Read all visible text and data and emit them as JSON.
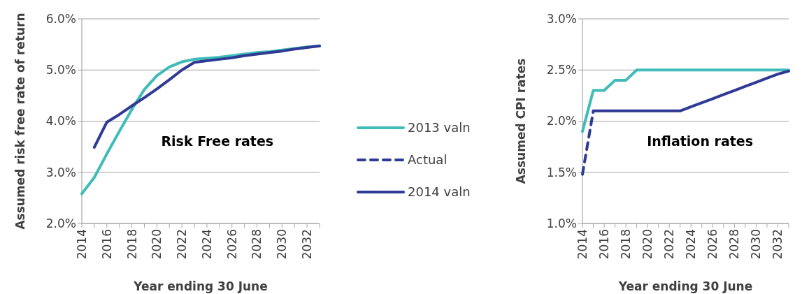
{
  "chart_data": [
    {
      "type": "line",
      "xlabel": "Year ending 30 June",
      "ylabel": "Assumed risk free rate of return",
      "annotations": [
        "Risk Free rates"
      ],
      "x": [
        2014,
        2015,
        2016,
        2017,
        2018,
        2019,
        2020,
        2021,
        2022,
        2023,
        2024,
        2025,
        2026,
        2027,
        2028,
        2029,
        2030,
        2031,
        2032,
        2033
      ],
      "series": [
        {
          "color": "#3fbcb7",
          "values": [
            2.58,
            2.9,
            3.36,
            3.8,
            4.23,
            4.62,
            4.89,
            5.06,
            5.16,
            5.21,
            5.23,
            5.25,
            5.28,
            5.31,
            5.34,
            5.36,
            5.39,
            5.42,
            5.45,
            5.47
          ]
        },
        {
          "color": "#2e3a94",
          "values": [
            null,
            3.49,
            3.98,
            4.13,
            4.3,
            4.46,
            4.63,
            4.81,
            5.0,
            5.15,
            5.18,
            5.21,
            5.24,
            5.28,
            5.31,
            5.34,
            5.37,
            5.41,
            5.44,
            5.47
          ]
        }
      ],
      "xlim": [
        2014,
        2033
      ],
      "xticks": [
        2014,
        {
          "value": 2015,
          "label": null
        },
        2016,
        {
          "value": 2017,
          "label": null
        },
        2018,
        {
          "value": 2019,
          "label": null
        },
        2020,
        {
          "value": 2021,
          "label": null
        },
        2022,
        {
          "value": 2023,
          "label": null
        },
        2024,
        {
          "value": 2025,
          "label": null
        },
        2026,
        {
          "value": 2027,
          "label": null
        },
        2028,
        {
          "value": 2029,
          "label": null
        },
        2030,
        {
          "value": 2031,
          "label": null
        },
        2032,
        {
          "value": 2033,
          "label": null
        }
      ],
      "ylim": [
        2,
        6
      ],
      "yticks": [
        {
          "value": 2,
          "label": "2.0%"
        },
        {
          "value": 3,
          "label": "3.0%"
        },
        {
          "value": 4,
          "label": "4.0%"
        },
        {
          "value": 5,
          "label": "5.0%"
        },
        {
          "value": 6,
          "label": "6.0%"
        }
      ],
      "grid": "y",
      "legend": false,
      "line_style": "solid",
      "marker": "none"
    },
    {
      "type": "line",
      "xlabel": "Year ending 30 June",
      "ylabel": "Assumed CPI rates",
      "annotations": [
        "Inflation rates"
      ],
      "x": [
        2014,
        2015,
        2016,
        2017,
        2018,
        2019,
        2020,
        2021,
        2022,
        2023,
        2024,
        2025,
        2026,
        2027,
        2028,
        2029,
        2030,
        2031,
        2032,
        2033
      ],
      "series": [
        {
          "name": "2013 valn",
          "color": "#3fbcb7",
          "values": [
            1.9,
            2.3,
            2.3,
            2.4,
            2.4,
            2.5,
            2.5,
            2.5,
            2.5,
            2.5,
            2.5,
            2.5,
            2.5,
            2.5,
            2.5,
            2.5,
            2.5,
            2.5,
            2.5,
            2.5
          ]
        },
        {
          "name": "Actual",
          "color": "#2e3a94",
          "line_style": "dashed",
          "values": [
            1.48,
            2.1,
            null,
            null,
            null,
            null,
            null,
            null,
            null,
            null,
            null,
            null,
            null,
            null,
            null,
            null,
            null,
            null,
            null,
            null
          ]
        },
        {
          "name": "2014 valn",
          "color": "#2e3a94",
          "values": [
            null,
            2.1,
            2.1,
            2.1,
            2.1,
            2.1,
            2.1,
            2.1,
            2.1,
            2.1,
            2.14,
            2.18,
            2.22,
            2.26,
            2.3,
            2.34,
            2.38,
            2.42,
            2.46,
            2.49
          ]
        }
      ],
      "xlim": [
        2014,
        2033
      ],
      "xticks": [
        2014,
        {
          "value": 2015,
          "label": null
        },
        2016,
        {
          "value": 2017,
          "label": null
        },
        2018,
        {
          "value": 2019,
          "label": null
        },
        2020,
        {
          "value": 2021,
          "label": null
        },
        2022,
        {
          "value": 2023,
          "label": null
        },
        2024,
        {
          "value": 2025,
          "label": null
        },
        2026,
        {
          "value": 2027,
          "label": null
        },
        2028,
        {
          "value": 2029,
          "label": null
        },
        2030,
        {
          "value": 2031,
          "label": null
        },
        2032,
        {
          "value": 2033,
          "label": null
        }
      ],
      "ylim": [
        1,
        3
      ],
      "yticks": [
        {
          "value": 1,
          "label": "1.0%"
        },
        {
          "value": 1.5,
          "label": "1.5%"
        },
        {
          "value": 2,
          "label": "2.0%"
        },
        {
          "value": 2.5,
          "label": "2.5%"
        },
        {
          "value": 3,
          "label": "3.0%"
        }
      ],
      "grid": "y",
      "legend": "left",
      "line_style": "solid",
      "marker": "none"
    }
  ]
}
